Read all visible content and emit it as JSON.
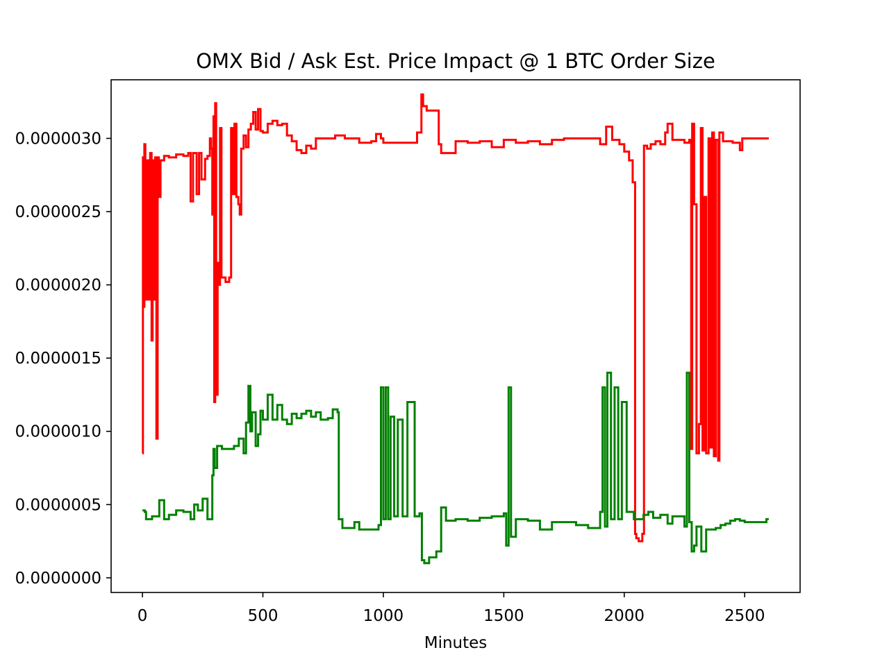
{
  "chart_data": {
    "type": "line",
    "title": "OMX Bid / Ask Est. Price Impact @ 1 BTC Order Size",
    "xlabel": "Minutes",
    "ylabel": "",
    "xlim": [
      -130,
      2730
    ],
    "ylim": [
      -1e-07,
      3.4e-06
    ],
    "x_ticks": [
      0,
      500,
      1000,
      1500,
      2000,
      2500
    ],
    "x_tick_labels": [
      "0",
      "500",
      "1000",
      "1500",
      "2000",
      "2500"
    ],
    "y_ticks": [
      0.0,
      5e-07,
      1e-06,
      1.5e-06,
      2e-06,
      2.5e-06,
      3e-06
    ],
    "y_tick_labels": [
      "0.0000000",
      "0.0000005",
      "0.0000010",
      "0.0000015",
      "0.0000020",
      "0.0000025",
      "0.0000030"
    ],
    "grid": false,
    "legend": "none",
    "series": [
      {
        "color": "#ff0000",
        "step": true,
        "points": [
          [
            0,
            8.5e-07
          ],
          [
            2,
            2.87e-06
          ],
          [
            5,
            1.85e-06
          ],
          [
            8,
            2.96e-06
          ],
          [
            12,
            1.9e-06
          ],
          [
            18,
            2.85e-06
          ],
          [
            25,
            1.9e-06
          ],
          [
            32,
            2.9e-06
          ],
          [
            38,
            1.62e-06
          ],
          [
            42,
            2.85e-06
          ],
          [
            48,
            1.9e-06
          ],
          [
            53,
            2.87e-06
          ],
          [
            58,
            9.5e-07
          ],
          [
            63,
            2.87e-06
          ],
          [
            68,
            2.6e-06
          ],
          [
            75,
            2.85e-06
          ],
          [
            90,
            2.88e-06
          ],
          [
            110,
            2.87e-06
          ],
          [
            140,
            2.89e-06
          ],
          [
            170,
            2.88e-06
          ],
          [
            190,
            2.9e-06
          ],
          [
            200,
            2.57e-06
          ],
          [
            210,
            2.9e-06
          ],
          [
            225,
            2.62e-06
          ],
          [
            235,
            2.9e-06
          ],
          [
            245,
            2.72e-06
          ],
          [
            260,
            2.86e-06
          ],
          [
            270,
            2.88e-06
          ],
          [
            280,
            3e-06
          ],
          [
            285,
            2.93e-06
          ],
          [
            290,
            2.48e-06
          ],
          [
            295,
            3.15e-06
          ],
          [
            298,
            1.2e-06
          ],
          [
            302,
            3.24e-06
          ],
          [
            306,
            1.25e-06
          ],
          [
            312,
            2.15e-06
          ],
          [
            318,
            2e-06
          ],
          [
            322,
            3.07e-06
          ],
          [
            328,
            2.05e-06
          ],
          [
            345,
            2.02e-06
          ],
          [
            360,
            2.05e-06
          ],
          [
            368,
            3.07e-06
          ],
          [
            375,
            2.62e-06
          ],
          [
            382,
            3.1e-06
          ],
          [
            390,
            2.6e-06
          ],
          [
            398,
            2.55e-06
          ],
          [
            404,
            2.48e-06
          ],
          [
            410,
            2.93e-06
          ],
          [
            420,
            3.02e-06
          ],
          [
            430,
            2.94e-06
          ],
          [
            440,
            3.06e-06
          ],
          [
            450,
            3.1e-06
          ],
          [
            460,
            3.18e-06
          ],
          [
            470,
            3.06e-06
          ],
          [
            480,
            3.2e-06
          ],
          [
            490,
            3.05e-06
          ],
          [
            500,
            3.04e-06
          ],
          [
            520,
            3.1e-06
          ],
          [
            540,
            3.12e-06
          ],
          [
            560,
            3.09e-06
          ],
          [
            580,
            3.1e-06
          ],
          [
            600,
            3.02e-06
          ],
          [
            620,
            2.98e-06
          ],
          [
            640,
            2.92e-06
          ],
          [
            660,
            2.9e-06
          ],
          [
            680,
            2.95e-06
          ],
          [
            700,
            2.93e-06
          ],
          [
            720,
            3e-06
          ],
          [
            760,
            3e-06
          ],
          [
            800,
            3.02e-06
          ],
          [
            840,
            3e-06
          ],
          [
            860,
            3e-06
          ],
          [
            900,
            2.97e-06
          ],
          [
            950,
            2.98e-06
          ],
          [
            970,
            3.03e-06
          ],
          [
            990,
            3e-06
          ],
          [
            1000,
            2.97e-06
          ],
          [
            1050,
            2.97e-06
          ],
          [
            1100,
            2.97e-06
          ],
          [
            1140,
            3.04e-06
          ],
          [
            1158,
            3.3e-06
          ],
          [
            1165,
            3.22e-06
          ],
          [
            1180,
            3.19e-06
          ],
          [
            1215,
            3.19e-06
          ],
          [
            1230,
            2.96e-06
          ],
          [
            1240,
            2.9e-06
          ],
          [
            1300,
            2.98e-06
          ],
          [
            1350,
            2.97e-06
          ],
          [
            1400,
            2.98e-06
          ],
          [
            1450,
            2.94e-06
          ],
          [
            1500,
            2.99e-06
          ],
          [
            1550,
            2.97e-06
          ],
          [
            1600,
            2.98e-06
          ],
          [
            1650,
            2.96e-06
          ],
          [
            1700,
            2.99e-06
          ],
          [
            1750,
            3e-06
          ],
          [
            1800,
            3e-06
          ],
          [
            1850,
            3e-06
          ],
          [
            1900,
            2.96e-06
          ],
          [
            1925,
            3.08e-06
          ],
          [
            1950,
            2.99e-06
          ],
          [
            1980,
            2.96e-06
          ],
          [
            2000,
            2.91e-06
          ],
          [
            2020,
            2.85e-06
          ],
          [
            2035,
            2.7e-06
          ],
          [
            2045,
            3e-07
          ],
          [
            2050,
            2.7e-07
          ],
          [
            2060,
            2.5e-07
          ],
          [
            2075,
            3e-07
          ],
          [
            2082,
            2.95e-06
          ],
          [
            2095,
            2.93e-06
          ],
          [
            2110,
            2.96e-06
          ],
          [
            2130,
            2.98e-06
          ],
          [
            2150,
            2.96e-06
          ],
          [
            2170,
            3.04e-06
          ],
          [
            2180,
            3.1e-06
          ],
          [
            2200,
            2.99e-06
          ],
          [
            2250,
            2.97e-06
          ],
          [
            2270,
            2.99e-06
          ],
          [
            2278,
            8.8e-07
          ],
          [
            2282,
            3.1e-06
          ],
          [
            2290,
            2.55e-06
          ],
          [
            2300,
            8.5e-07
          ],
          [
            2310,
            1.05e-06
          ],
          [
            2318,
            3.07e-06
          ],
          [
            2325,
            8.7e-07
          ],
          [
            2332,
            2.6e-06
          ],
          [
            2340,
            8.5e-07
          ],
          [
            2350,
            3e-06
          ],
          [
            2358,
            8.9e-07
          ],
          [
            2365,
            3.04e-06
          ],
          [
            2372,
            8.3e-07
          ],
          [
            2380,
            2.99e-06
          ],
          [
            2390,
            8e-07
          ],
          [
            2395,
            3.04e-06
          ],
          [
            2410,
            2.98e-06
          ],
          [
            2450,
            2.97e-06
          ],
          [
            2480,
            2.92e-06
          ],
          [
            2490,
            3e-06
          ],
          [
            2550,
            3e-06
          ],
          [
            2600,
            3e-06
          ]
        ]
      },
      {
        "color": "#008000",
        "step": true,
        "points": [
          [
            0,
            4.6e-07
          ],
          [
            10,
            4.5e-07
          ],
          [
            15,
            4e-07
          ],
          [
            40,
            4.2e-07
          ],
          [
            70,
            5.3e-07
          ],
          [
            90,
            4e-07
          ],
          [
            110,
            4.3e-07
          ],
          [
            140,
            4.6e-07
          ],
          [
            170,
            4.5e-07
          ],
          [
            190,
            4.5e-07
          ],
          [
            200,
            4e-07
          ],
          [
            215,
            5e-07
          ],
          [
            230,
            4.6e-07
          ],
          [
            250,
            5.4e-07
          ],
          [
            270,
            4e-07
          ],
          [
            290,
            7e-07
          ],
          [
            295,
            8.8e-07
          ],
          [
            300,
            7.5e-07
          ],
          [
            310,
            9e-07
          ],
          [
            330,
            8.8e-07
          ],
          [
            350,
            8.8e-07
          ],
          [
            380,
            9e-07
          ],
          [
            400,
            9.5e-07
          ],
          [
            420,
            8.5e-07
          ],
          [
            430,
            1.06e-06
          ],
          [
            440,
            1.31e-06
          ],
          [
            448,
            1e-06
          ],
          [
            455,
            1.13e-06
          ],
          [
            470,
            9e-07
          ],
          [
            480,
            9.8e-07
          ],
          [
            490,
            1.14e-06
          ],
          [
            500,
            1.08e-06
          ],
          [
            520,
            1.25e-06
          ],
          [
            540,
            1.08e-06
          ],
          [
            560,
            1.18e-06
          ],
          [
            580,
            1.08e-06
          ],
          [
            600,
            1.05e-06
          ],
          [
            620,
            1.12e-06
          ],
          [
            640,
            1.09e-06
          ],
          [
            660,
            1.12e-06
          ],
          [
            680,
            1.14e-06
          ],
          [
            700,
            1.1e-06
          ],
          [
            720,
            1.13e-06
          ],
          [
            740,
            1.08e-06
          ],
          [
            770,
            1.09e-06
          ],
          [
            790,
            1.15e-06
          ],
          [
            810,
            1.13e-06
          ],
          [
            815,
            4e-07
          ],
          [
            830,
            3.4e-07
          ],
          [
            880,
            3.8e-07
          ],
          [
            900,
            3.3e-07
          ],
          [
            980,
            3.6e-07
          ],
          [
            990,
            1.3e-06
          ],
          [
            1000,
            4e-07
          ],
          [
            1010,
            1.3e-06
          ],
          [
            1020,
            4e-07
          ],
          [
            1030,
            1.1e-06
          ],
          [
            1045,
            4.2e-07
          ],
          [
            1060,
            1.08e-06
          ],
          [
            1080,
            4.2e-07
          ],
          [
            1100,
            1.2e-06
          ],
          [
            1130,
            4.2e-07
          ],
          [
            1150,
            4.4e-07
          ],
          [
            1160,
            1.2e-07
          ],
          [
            1170,
            1e-07
          ],
          [
            1190,
            1.4e-07
          ],
          [
            1220,
            1.8e-07
          ],
          [
            1240,
            4.8e-07
          ],
          [
            1260,
            3.9e-07
          ],
          [
            1300,
            4e-07
          ],
          [
            1350,
            3.9e-07
          ],
          [
            1400,
            4.1e-07
          ],
          [
            1450,
            4.2e-07
          ],
          [
            1500,
            4.4e-07
          ],
          [
            1510,
            2.2e-07
          ],
          [
            1520,
            1.3e-06
          ],
          [
            1530,
            2.8e-07
          ],
          [
            1550,
            4e-07
          ],
          [
            1600,
            3.9e-07
          ],
          [
            1650,
            3.3e-07
          ],
          [
            1700,
            3.8e-07
          ],
          [
            1750,
            3.8e-07
          ],
          [
            1800,
            3.6e-07
          ],
          [
            1850,
            3.4e-07
          ],
          [
            1900,
            4.5e-07
          ],
          [
            1910,
            1.3e-06
          ],
          [
            1920,
            3.5e-07
          ],
          [
            1930,
            1.4e-06
          ],
          [
            1945,
            4e-07
          ],
          [
            1960,
            1.3e-06
          ],
          [
            1975,
            4e-07
          ],
          [
            1990,
            1.2e-06
          ],
          [
            2010,
            4.5e-07
          ],
          [
            2040,
            4e-07
          ],
          [
            2080,
            4.3e-07
          ],
          [
            2100,
            4.5e-07
          ],
          [
            2120,
            4.1e-07
          ],
          [
            2150,
            4.3e-07
          ],
          [
            2180,
            3.7e-07
          ],
          [
            2200,
            4.2e-07
          ],
          [
            2250,
            3.5e-07
          ],
          [
            2260,
            1.4e-06
          ],
          [
            2270,
            3.8e-07
          ],
          [
            2280,
            1.8e-07
          ],
          [
            2290,
            2.2e-07
          ],
          [
            2300,
            3.5e-07
          ],
          [
            2320,
            1.8e-07
          ],
          [
            2340,
            3.3e-07
          ],
          [
            2380,
            3.4e-07
          ],
          [
            2400,
            3.6e-07
          ],
          [
            2420,
            3.7e-07
          ],
          [
            2440,
            3.9e-07
          ],
          [
            2460,
            4e-07
          ],
          [
            2480,
            3.9e-07
          ],
          [
            2500,
            3.8e-07
          ],
          [
            2550,
            3.8e-07
          ],
          [
            2590,
            4e-07
          ],
          [
            2600,
            4e-07
          ]
        ]
      }
    ]
  }
}
